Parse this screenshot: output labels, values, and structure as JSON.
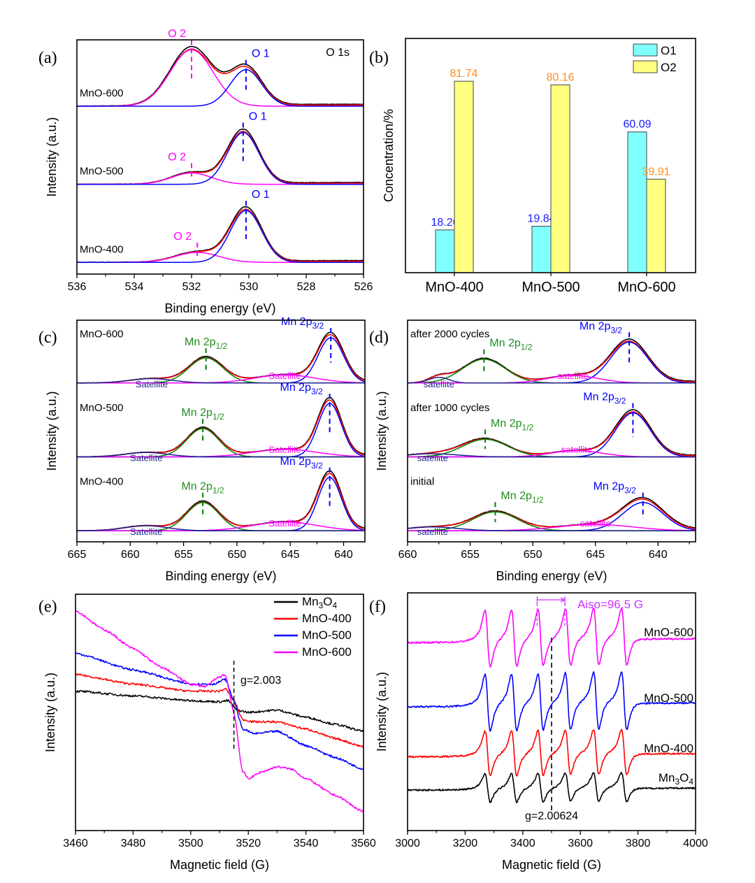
{
  "chart_data": [
    {
      "panel_label": "(a)",
      "type": "line",
      "xlabel": "Binding energy (eV)",
      "ylabel": "Intensity (a.u.)",
      "xlim": [
        536,
        526
      ],
      "xticks": [
        536,
        534,
        532,
        530,
        528,
        526
      ],
      "annotation": "O 1s",
      "grid": false,
      "series": [
        {
          "name": "MnO-600",
          "components": [
            {
              "label": "O 2",
              "center": 532.0,
              "sigma": 0.75,
              "height": 0.85,
              "color": "#ff00ff"
            },
            {
              "label": "O 1",
              "center": 530.1,
              "sigma": 0.55,
              "height": 0.55,
              "color": "#0000ff"
            }
          ]
        },
        {
          "name": "MnO-500",
          "components": [
            {
              "label": "O 2",
              "center": 532.0,
              "sigma": 0.7,
              "height": 0.17,
              "color": "#ff00ff"
            },
            {
              "label": "O 1",
              "center": 530.2,
              "sigma": 0.55,
              "height": 0.78,
              "color": "#0000ff"
            }
          ]
        },
        {
          "name": "MnO-400",
          "components": [
            {
              "label": "O 2",
              "center": 531.8,
              "sigma": 0.75,
              "height": 0.15,
              "color": "#ff00ff"
            },
            {
              "label": "O 1",
              "center": 530.1,
              "sigma": 0.55,
              "height": 0.78,
              "color": "#0000ff"
            }
          ]
        }
      ],
      "fit_color": "#ff0000",
      "raw_color": "#000000"
    },
    {
      "panel_label": "(b)",
      "type": "bar",
      "ylabel": "Concentration/%",
      "ylim": [
        0,
        100
      ],
      "categories": [
        "MnO-400",
        "MnO-500",
        "MnO-600"
      ],
      "series": [
        {
          "name": "O1",
          "values": [
            18.26,
            19.84,
            60.09
          ],
          "labels": [
            "18.26",
            "19.84",
            "60.09"
          ],
          "color": "#80ffff",
          "label_color": "#1a1aff"
        },
        {
          "name": "O2",
          "values": [
            81.74,
            80.16,
            39.91
          ],
          "labels": [
            "81.74",
            "80.16",
            "39.91"
          ],
          "color": "#ffff80",
          "label_color": "#ff8c1a"
        }
      ],
      "legend": "top-right"
    },
    {
      "panel_label": "(c)",
      "type": "line",
      "xlabel": "Binding energy (eV)",
      "ylabel": "Intensity (a.u.)",
      "xlim": [
        665,
        638
      ],
      "xticks": [
        665,
        660,
        655,
        650,
        645,
        640
      ],
      "series": [
        {
          "name": "MnO-600",
          "components": [
            {
              "label": "Mn 2p",
              "sub": "3/2",
              "center": 641.2,
              "sigma": 1.2,
              "height": 0.72,
              "color": "#0000ff"
            },
            {
              "label": "Mn 2p",
              "sub": "1/2",
              "center": 652.9,
              "sigma": 1.6,
              "height": 0.4,
              "color": "#008000",
              "label_color": "#1f8f1f"
            },
            {
              "label": "Satellite",
              "center": 645.5,
              "sigma": 2.8,
              "height": 0.13,
              "color": "#ff00ff",
              "satellite": true
            },
            {
              "label": "Satellite",
              "center": 658.0,
              "sigma": 2.0,
              "height": 0.07,
              "color": "#1f1f8f",
              "satellite": true
            }
          ]
        },
        {
          "name": "MnO-500",
          "components": [
            {
              "label": "Mn 2p",
              "sub": "3/2",
              "center": 641.3,
              "sigma": 1.1,
              "height": 0.85,
              "color": "#0000ff"
            },
            {
              "label": "Mn 2p",
              "sub": "1/2",
              "center": 653.2,
              "sigma": 1.5,
              "height": 0.45,
              "color": "#008000",
              "label_color": "#1f8f1f"
            },
            {
              "label": "Satellite",
              "center": 645.5,
              "sigma": 3.0,
              "height": 0.12,
              "color": "#ff00ff",
              "satellite": true
            },
            {
              "label": "Satellite",
              "center": 658.5,
              "sigma": 2.0,
              "height": 0.07,
              "color": "#1f1f8f",
              "satellite": true
            }
          ]
        },
        {
          "name": "MnO-400",
          "components": [
            {
              "label": "Mn 2p",
              "sub": "3/2",
              "center": 641.3,
              "sigma": 1.1,
              "height": 0.85,
              "color": "#0000ff"
            },
            {
              "label": "Mn 2p",
              "sub": "1/2",
              "center": 653.2,
              "sigma": 1.5,
              "height": 0.45,
              "color": "#008000",
              "label_color": "#1f8f1f"
            },
            {
              "label": "Satellite",
              "center": 645.5,
              "sigma": 3.0,
              "height": 0.14,
              "color": "#ff00ff",
              "satellite": true
            },
            {
              "label": "Satellite",
              "center": 658.5,
              "sigma": 2.0,
              "height": 0.08,
              "color": "#1f1f8f",
              "satellite": true
            }
          ]
        }
      ],
      "fit_color": "#ff0000",
      "raw_color": "#000000"
    },
    {
      "panel_label": "(d)",
      "type": "line",
      "xlabel": "Binding energy (eV)",
      "ylabel": "Intensity (a.u.)",
      "xlim": [
        660,
        637
      ],
      "xticks": [
        660,
        655,
        650,
        645,
        640
      ],
      "series": [
        {
          "name": "after 2000 cycles",
          "components": [
            {
              "label": "Mn 2p",
              "sub": "3/2",
              "center": 642.3,
              "sigma": 1.5,
              "height": 0.65,
              "color": "#0000ff"
            },
            {
              "label": "Mn 2p",
              "sub": "1/2",
              "center": 653.9,
              "sigma": 1.7,
              "height": 0.38,
              "color": "#008000",
              "label_color": "#1f8f1f"
            },
            {
              "label": "satellite",
              "center": 646.8,
              "sigma": 2.0,
              "height": 0.12,
              "color": "#ff00ff",
              "satellite": true
            },
            {
              "label": "satellite",
              "center": 657.5,
              "sigma": 0.8,
              "height": 0.09,
              "color": "#1f1f8f",
              "satellite": true
            }
          ]
        },
        {
          "name": "after 1000 cycles",
          "components": [
            {
              "label": "Mn 2p",
              "sub": "3/2",
              "center": 642.0,
              "sigma": 1.4,
              "height": 0.7,
              "color": "#0000ff"
            },
            {
              "label": "Mn 2p",
              "sub": "1/2",
              "center": 653.8,
              "sigma": 1.8,
              "height": 0.28,
              "color": "#008000",
              "label_color": "#1f8f1f"
            },
            {
              "label": "satellite",
              "center": 646.5,
              "sigma": 2.0,
              "height": 0.1,
              "color": "#ff00ff",
              "satellite": true
            },
            {
              "label": "satellite",
              "center": 658.0,
              "sigma": 2.0,
              "height": 0.05,
              "color": "#1f1f8f",
              "satellite": true
            }
          ]
        },
        {
          "name": "initial",
          "components": [
            {
              "label": "Mn 2p",
              "sub": "3/2",
              "center": 641.2,
              "sigma": 1.6,
              "height": 0.45,
              "color": "#0000ff"
            },
            {
              "label": "Mn 2p",
              "sub": "1/2",
              "center": 653.0,
              "sigma": 1.8,
              "height": 0.3,
              "color": "#008000",
              "label_color": "#1f8f1f"
            },
            {
              "label": "satellite",
              "center": 645.0,
              "sigma": 3.0,
              "height": 0.1,
              "color": "#ff00ff",
              "satellite": true
            },
            {
              "label": "satellite",
              "center": 658.0,
              "sigma": 2.0,
              "height": 0.06,
              "color": "#1f1f8f",
              "satellite": true
            }
          ]
        }
      ],
      "fit_color": "#ff0000",
      "raw_color": "#000000"
    },
    {
      "panel_label": "(e)",
      "type": "line",
      "xlabel": "Magnetic field (G)",
      "ylabel": "Intensity (a.u.)",
      "xlim": [
        3460,
        3560
      ],
      "ylim": [
        0,
        100
      ],
      "xticks": [
        3460,
        3480,
        3500,
        3520,
        3540,
        3560
      ],
      "marker": {
        "x": 3515,
        "label": "g=2.003"
      },
      "legend": "top-right",
      "series": [
        {
          "name": "Mn3O4",
          "color": "#000000",
          "points": [
            [
              3460,
              59
            ],
            [
              3480,
              57
            ],
            [
              3500,
              55
            ],
            [
              3510,
              54.5
            ],
            [
              3513,
              55
            ],
            [
              3516,
              51
            ],
            [
              3520,
              50
            ],
            [
              3530,
              51
            ],
            [
              3540,
              48
            ],
            [
              3550,
              45
            ],
            [
              3560,
              42
            ]
          ]
        },
        {
          "name": "MnO-400",
          "color": "#ff0000",
          "points": [
            [
              3460,
              66
            ],
            [
              3480,
              62
            ],
            [
              3500,
              59
            ],
            [
              3510,
              59
            ],
            [
              3512,
              60
            ],
            [
              3515,
              55
            ],
            [
              3518,
              47
            ],
            [
              3522,
              46
            ],
            [
              3530,
              46
            ],
            [
              3540,
              43
            ],
            [
              3550,
              39
            ],
            [
              3560,
              35.5
            ]
          ]
        },
        {
          "name": "MnO-500",
          "color": "#0000ff",
          "points": [
            [
              3460,
              75
            ],
            [
              3480,
              68
            ],
            [
              3500,
              62
            ],
            [
              3508,
              62
            ],
            [
              3512,
              64
            ],
            [
              3515,
              55
            ],
            [
              3518,
              43
            ],
            [
              3522,
              41
            ],
            [
              3530,
              42
            ],
            [
              3540,
              36
            ],
            [
              3550,
              31
            ],
            [
              3560,
              26
            ]
          ]
        },
        {
          "name": "MnO-600",
          "color": "#ff00ff",
          "points": [
            [
              3460,
              93
            ],
            [
              3470,
              85
            ],
            [
              3480,
              77
            ],
            [
              3490,
              69
            ],
            [
              3500,
              62
            ],
            [
              3505,
              61
            ],
            [
              3510,
              65
            ],
            [
              3512,
              66
            ],
            [
              3515,
              50
            ],
            [
              3518,
              25
            ],
            [
              3520,
              22
            ],
            [
              3525,
              25
            ],
            [
              3530,
              27
            ],
            [
              3535,
              26
            ],
            [
              3540,
              22
            ],
            [
              3550,
              15
            ],
            [
              3560,
              8
            ]
          ]
        }
      ]
    },
    {
      "panel_label": "(f)",
      "type": "line",
      "xlabel": "Magnetic field (G)",
      "ylabel": "Intensity (a.u.)",
      "xlim": [
        3000,
        4000
      ],
      "ylim": [
        0,
        100
      ],
      "xticks": [
        3000,
        3200,
        3400,
        3600,
        3800,
        4000
      ],
      "line_positions": [
        3278,
        3370,
        3462,
        3557,
        3655,
        3752
      ],
      "marker": {
        "x": 3500,
        "label": "g=2.00624"
      },
      "aiso": {
        "from": 3450,
        "to": 3546,
        "label": "Aiso=96.5 G",
        "color": "#cc33ff"
      },
      "series": [
        {
          "name": "MnO-600",
          "color": "#ff00ff",
          "baseline": 79,
          "amplitude": 12
        },
        {
          "name": "MnO-500",
          "color": "#0000ff",
          "baseline": 52,
          "amplitude": 12
        },
        {
          "name": "MnO-400",
          "color": "#ff0000",
          "baseline": 31,
          "amplitude": 9.5
        },
        {
          "name": "Mn3O4",
          "color": "#000000",
          "baseline": 17,
          "amplitude": 6
        }
      ]
    }
  ]
}
